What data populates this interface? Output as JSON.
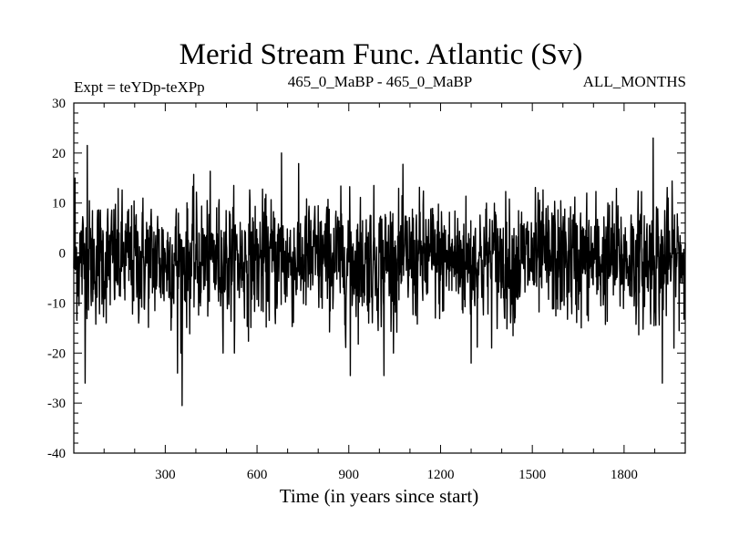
{
  "chart_data": {
    "type": "line",
    "title": "Merid Stream Func. Atlantic (Sv)",
    "subtitle_left": "Expt = teYDp-teXPp",
    "subtitle_center": "465_0_MaBP - 465_0_MaBP",
    "subtitle_right": "ALL_MONTHS",
    "xlabel": "Time (in years since start)",
    "ylabel": "",
    "xlim": [
      1,
      2000
    ],
    "ylim": [
      -40,
      30
    ],
    "xticks": [
      300,
      600,
      900,
      1200,
      1500,
      1800
    ],
    "xtick_labels": [
      "300",
      "600",
      "900",
      "1200",
      "1500",
      "1800"
    ],
    "yticks": [
      30,
      20,
      10,
      0,
      -10,
      -20,
      -30,
      -40
    ],
    "ytick_labels": [
      "30",
      "20",
      "10",
      "0",
      "-10",
      "-20",
      "-30",
      "-40"
    ],
    "series": [
      {
        "name": "Merid Stream Func. Atlantic",
        "color": "#000000",
        "n_points": 2000,
        "approx_std": 6,
        "notable_points": [
          {
            "x": 5,
            "y": 15
          },
          {
            "x": 38,
            "y": -26
          },
          {
            "x": 45,
            "y": 21.5
          },
          {
            "x": 355,
            "y": -30.5
          },
          {
            "x": 340,
            "y": -24
          },
          {
            "x": 680,
            "y": 20
          },
          {
            "x": 905,
            "y": -24.5
          },
          {
            "x": 1015,
            "y": -24.5
          },
          {
            "x": 1300,
            "y": -22
          },
          {
            "x": 1895,
            "y": 23
          },
          {
            "x": 1925,
            "y": -26
          }
        ]
      }
    ]
  }
}
